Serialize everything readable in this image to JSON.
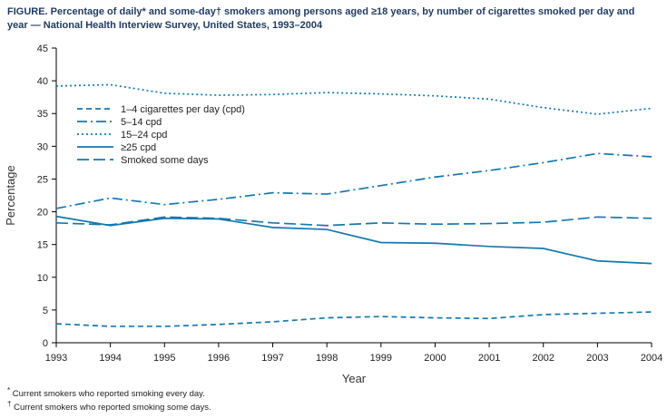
{
  "figure": {
    "title": "FIGURE. Percentage of daily* and some-day† smokers among persons aged ≥18 years, by number of cigarettes smoked per day and year — National Health Interview Survey, United States, 1993–2004",
    "footnotes": [
      {
        "marker": "*",
        "text": "Current smokers who reported smoking every day."
      },
      {
        "marker": "†",
        "text": "Current smokers who reported smoking some days."
      }
    ]
  },
  "chart_data": {
    "type": "line",
    "x": [
      1993,
      1994,
      1995,
      1996,
      1997,
      1998,
      1999,
      2000,
      2001,
      2002,
      2003,
      2004
    ],
    "xlabel": "Year",
    "ylabel": "Percentage",
    "ylim": [
      0,
      45
    ],
    "ytick_step": 5,
    "grid": false,
    "legend_position": "upper-left-inside",
    "line_color": "#1578AE",
    "series": [
      {
        "name": "1–4 cigarettes per day (cpd)",
        "dash": "6,4",
        "values": [
          2.9,
          2.5,
          2.5,
          2.8,
          3.2,
          3.8,
          4.0,
          3.8,
          3.7,
          4.3,
          4.5,
          4.7
        ]
      },
      {
        "name": "5–14 cpd",
        "dash": "11,4,2,4",
        "values": [
          20.5,
          22.1,
          21.1,
          21.9,
          22.9,
          22.7,
          24.0,
          25.3,
          26.3,
          27.5,
          28.9,
          28.4
        ]
      },
      {
        "name": "15–24 cpd",
        "dash": "2,3",
        "values": [
          39.2,
          39.4,
          38.1,
          37.8,
          37.9,
          38.2,
          38.0,
          37.7,
          37.2,
          35.9,
          34.9,
          35.8
        ]
      },
      {
        "name": "≥25 cpd",
        "dash": "",
        "values": [
          19.3,
          17.9,
          19.0,
          18.9,
          17.6,
          17.3,
          15.3,
          15.2,
          14.7,
          14.4,
          12.5,
          12.1
        ]
      },
      {
        "name": "Smoked some days",
        "dash": "13,5",
        "values": [
          18.3,
          18.0,
          19.2,
          19.0,
          18.3,
          17.9,
          18.3,
          18.1,
          18.2,
          18.4,
          19.2,
          19.0
        ]
      }
    ]
  }
}
